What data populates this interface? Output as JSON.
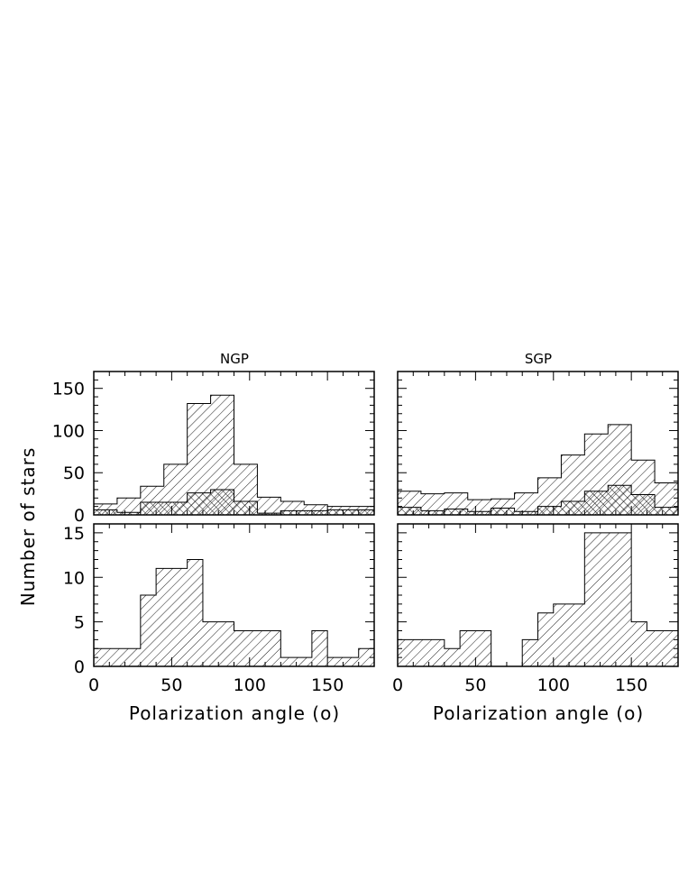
{
  "chart_data": [
    {
      "type": "bar",
      "title": "NGP",
      "xlabel": "",
      "ylabel": "",
      "bin_edges": [
        0,
        15,
        30,
        45,
        60,
        75,
        90,
        105,
        120,
        135,
        150,
        165,
        180
      ],
      "series": [
        {
          "values": [
            13,
            20,
            34,
            60,
            132,
            142,
            60,
            21,
            16,
            12,
            10,
            10
          ]
        },
        {
          "values": [
            6,
            3,
            15,
            15,
            26,
            30,
            16,
            2,
            5,
            5,
            6,
            6
          ]
        }
      ],
      "xlim": [
        0,
        180
      ],
      "ylim": [
        0,
        170
      ],
      "yticks": [
        "0",
        "50",
        "100",
        "150"
      ],
      "xticks": []
    },
    {
      "type": "bar",
      "title": "SGP",
      "xlabel": "",
      "ylabel": "",
      "bin_edges": [
        0,
        15,
        30,
        45,
        60,
        75,
        90,
        105,
        120,
        135,
        150,
        165,
        180
      ],
      "series": [
        {
          "values": [
            28,
            25,
            26,
            18,
            19,
            26,
            44,
            71,
            96,
            107,
            65,
            38
          ]
        },
        {
          "values": [
            9,
            5,
            7,
            4,
            8,
            4,
            10,
            16,
            28,
            35,
            24,
            9
          ]
        }
      ],
      "xlim": [
        0,
        180
      ],
      "ylim": [
        0,
        170
      ],
      "yticks": [],
      "xticks": []
    },
    {
      "type": "bar",
      "title": "",
      "xlabel": "Polarization angle (o)",
      "ylabel": "",
      "bin_edges": [
        0,
        10,
        20,
        30,
        40,
        50,
        60,
        70,
        80,
        90,
        100,
        110,
        120,
        130,
        140,
        150,
        160,
        170,
        180
      ],
      "series": [
        {
          "values": [
            2,
            2,
            2,
            8,
            11,
            11,
            12,
            5,
            5,
            4,
            4,
            4,
            1,
            1,
            4,
            1,
            1,
            2
          ]
        }
      ],
      "xlim": [
        0,
        180
      ],
      "ylim": [
        0,
        16
      ],
      "yticks": [
        "0",
        "5",
        "10",
        "15"
      ],
      "xticks": [
        "0",
        "50",
        "100",
        "150"
      ]
    },
    {
      "type": "bar",
      "title": "",
      "xlabel": "Polarization angle (o)",
      "ylabel": "",
      "bin_edges": [
        0,
        10,
        20,
        30,
        40,
        50,
        60,
        70,
        80,
        90,
        100,
        110,
        120,
        130,
        140,
        150,
        160,
        170,
        180
      ],
      "series": [
        {
          "values": [
            3,
            3,
            3,
            2,
            4,
            4,
            0,
            0,
            3,
            6,
            7,
            7,
            15,
            15,
            15,
            5,
            4,
            4
          ]
        }
      ],
      "xlim": [
        0,
        180
      ],
      "ylim": [
        0,
        16
      ],
      "yticks": [],
      "xticks": [
        "0",
        "50",
        "100",
        "150"
      ]
    }
  ],
  "figure": {
    "ylabel": "Number of stars"
  }
}
